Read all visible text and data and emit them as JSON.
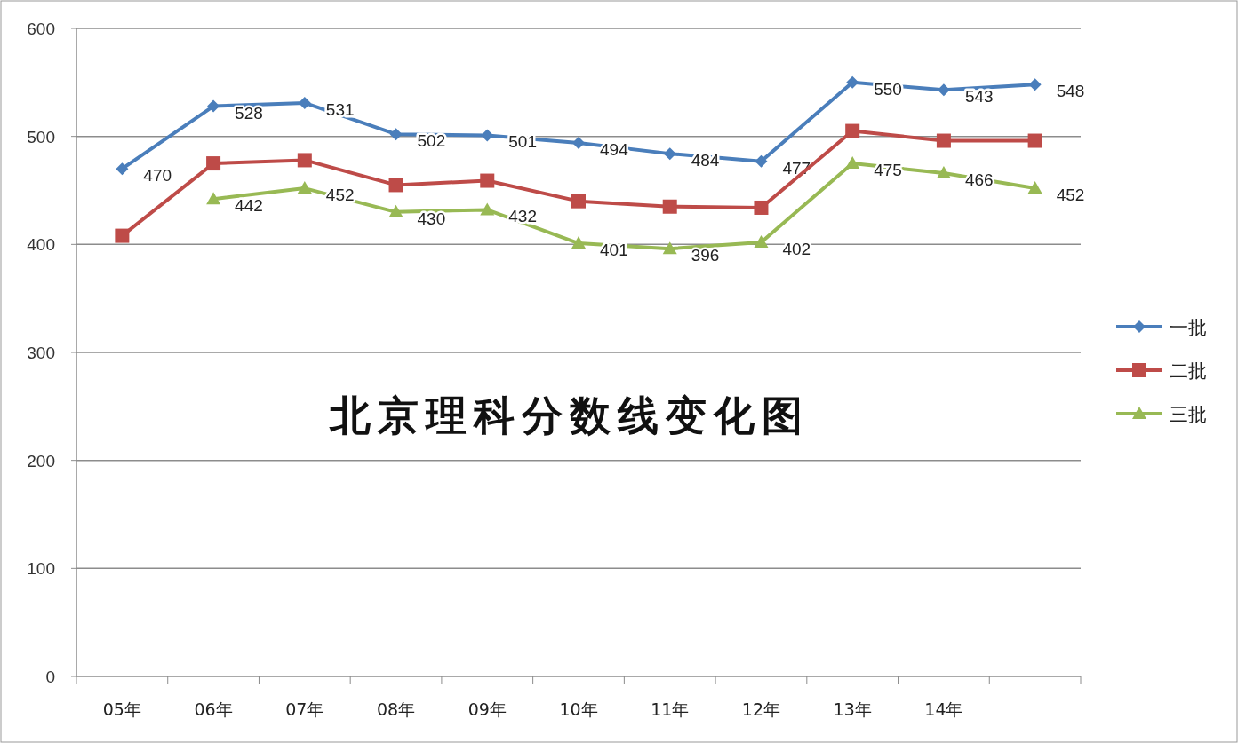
{
  "chart_data": {
    "type": "line",
    "title": "北京理科分数线变化图",
    "categories": [
      "05年",
      "06年",
      "07年",
      "08年",
      "09年",
      "10年",
      "11年",
      "12年",
      "13年",
      "14年",
      null
    ],
    "series": [
      {
        "name": "一批",
        "color": "#4a7ebb",
        "marker": "diamond",
        "values": [
          470,
          528,
          531,
          502,
          501,
          494,
          484,
          477,
          550,
          543,
          548
        ],
        "value_labels": [
          "470",
          "528",
          "531",
          "502",
          "501",
          "494",
          "484",
          "477",
          "550",
          "543",
          "548"
        ]
      },
      {
        "name": "二批",
        "color": "#be4b48",
        "marker": "square",
        "values": [
          408,
          475,
          478,
          455,
          459,
          440,
          435,
          434,
          505,
          496,
          496
        ]
      },
      {
        "name": "三批",
        "color": "#98b954",
        "marker": "triangle",
        "values": [
          null,
          442,
          452,
          430,
          432,
          401,
          396,
          402,
          475,
          466,
          452
        ],
        "value_labels": [
          null,
          "442",
          "452",
          "430",
          "432",
          "401",
          "396",
          "402",
          "475",
          "466",
          "452"
        ]
      }
    ],
    "ylim": [
      0,
      600
    ],
    "yticks": [
      0,
      100,
      200,
      300,
      400,
      500,
      600
    ],
    "grid": "y",
    "legend": "right"
  }
}
